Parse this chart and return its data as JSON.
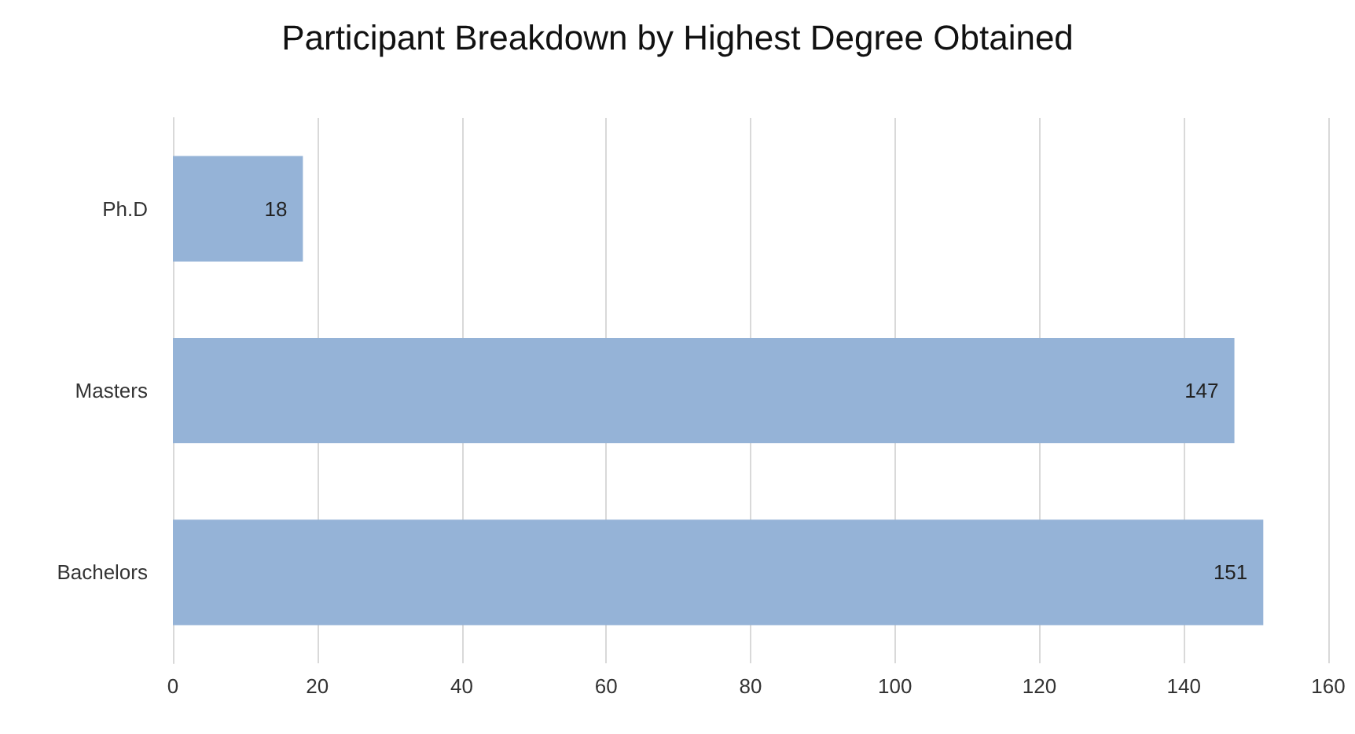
{
  "chart_data": {
    "type": "bar",
    "title": "Participant Breakdown by Highest Degree Obtained",
    "orientation": "horizontal",
    "categories": [
      "Ph.D",
      "Masters",
      "Bachelors"
    ],
    "values": [
      18,
      147,
      151
    ],
    "color": "#95b3d7",
    "xlim": [
      0,
      160
    ],
    "xticks": [
      0,
      20,
      40,
      60,
      80,
      100,
      120,
      140,
      160
    ],
    "grid": "x",
    "data_labels": true
  }
}
